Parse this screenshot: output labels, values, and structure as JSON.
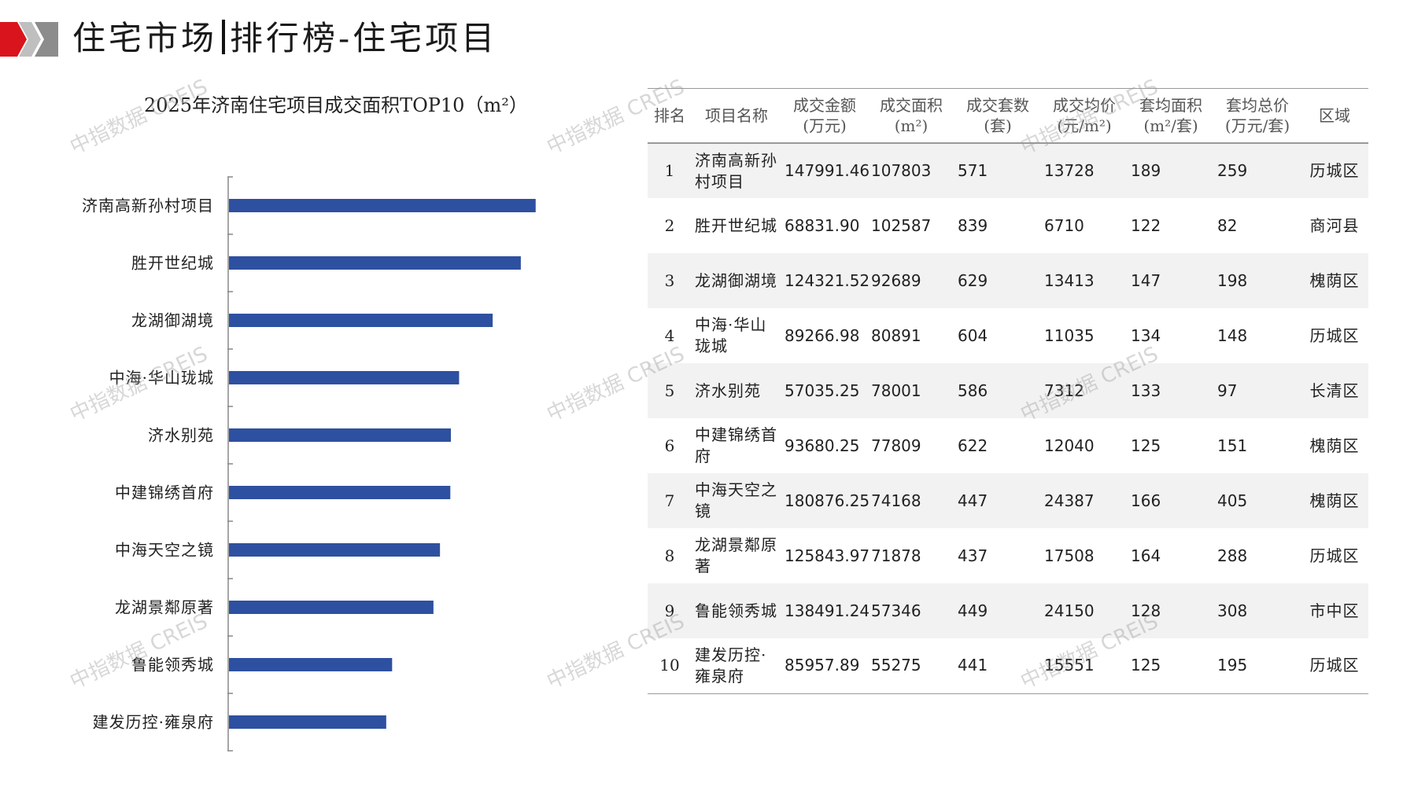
{
  "header": {
    "title_left": "住宅市场",
    "title_right": "排行榜-住宅项目"
  },
  "colors": {
    "bar": "#2E50A0",
    "logo_red": "#D9141C",
    "logo_gray": "#BFBFBF"
  },
  "watermark": "中指数据 CREIS",
  "chart_data": {
    "type": "bar",
    "orientation": "horizontal",
    "title": "2025年济南住宅项目成交面积TOP10（m²）",
    "categories": [
      "济南高新孙村项目",
      "胜开世纪城",
      "龙湖御湖境",
      "中海·华山珑城",
      "济水别苑",
      "中建锦绣首府",
      "中海天空之镜",
      "龙湖景鄰原著",
      "鲁能领秀城",
      "建发历控·雍泉府"
    ],
    "values": [
      107803,
      102587,
      92689,
      80891,
      78001,
      77809,
      74168,
      71878,
      57346,
      55275
    ],
    "xlim": [
      0,
      130000
    ],
    "grid": false,
    "legend": "none"
  },
  "table": {
    "headers": [
      {
        "line1": "排名",
        "line2": ""
      },
      {
        "line1": "项目名称",
        "line2": ""
      },
      {
        "line1": "成交金额",
        "line2": "(万元)"
      },
      {
        "line1": "成交面积",
        "line2": "(m²)"
      },
      {
        "line1": "成交套数",
        "line2": "(套)"
      },
      {
        "line1": "成交均价",
        "line2": "(元/m²)"
      },
      {
        "line1": "套均面积",
        "line2": "(m²/套)"
      },
      {
        "line1": "套均总价",
        "line2": "(万元/套)"
      },
      {
        "line1": "区域",
        "line2": ""
      }
    ],
    "rows": [
      {
        "rank": "1",
        "name": "济南高新孙村项目",
        "amount": "147991.46",
        "area": "107803",
        "units": "571",
        "avg_price": "13728",
        "avg_area": "189",
        "avg_total": "259",
        "region": "历城区"
      },
      {
        "rank": "2",
        "name": "胜开世纪城",
        "amount": "68831.90",
        "area": "102587",
        "units": "839",
        "avg_price": "6710",
        "avg_area": "122",
        "avg_total": "82",
        "region": "商河县"
      },
      {
        "rank": "3",
        "name": "龙湖御湖境",
        "amount": "124321.52",
        "area": "92689",
        "units": "629",
        "avg_price": "13413",
        "avg_area": "147",
        "avg_total": "198",
        "region": "槐荫区"
      },
      {
        "rank": "4",
        "name": "中海·华山珑城",
        "amount": "89266.98",
        "area": "80891",
        "units": "604",
        "avg_price": "11035",
        "avg_area": "134",
        "avg_total": "148",
        "region": "历城区"
      },
      {
        "rank": "5",
        "name": "济水别苑",
        "amount": "57035.25",
        "area": "78001",
        "units": "586",
        "avg_price": "7312",
        "avg_area": "133",
        "avg_total": "97",
        "region": "长清区"
      },
      {
        "rank": "6",
        "name": "中建锦绣首府",
        "amount": "93680.25",
        "area": "77809",
        "units": "622",
        "avg_price": "12040",
        "avg_area": "125",
        "avg_total": "151",
        "region": "槐荫区"
      },
      {
        "rank": "7",
        "name": "中海天空之镜",
        "amount": "180876.25",
        "area": "74168",
        "units": "447",
        "avg_price": "24387",
        "avg_area": "166",
        "avg_total": "405",
        "region": "槐荫区"
      },
      {
        "rank": "8",
        "name": "龙湖景鄰原著",
        "amount": "125843.97",
        "area": "71878",
        "units": "437",
        "avg_price": "17508",
        "avg_area": "164",
        "avg_total": "288",
        "region": "历城区"
      },
      {
        "rank": "9",
        "name": "鲁能领秀城",
        "amount": "138491.24",
        "area": "57346",
        "units": "449",
        "avg_price": "24150",
        "avg_area": "128",
        "avg_total": "308",
        "region": "市中区"
      },
      {
        "rank": "10",
        "name": "建发历控·雍泉府",
        "amount": "85957.89",
        "area": "55275",
        "units": "441",
        "avg_price": "15551",
        "avg_area": "125",
        "avg_total": "195",
        "region": "历城区"
      }
    ]
  }
}
